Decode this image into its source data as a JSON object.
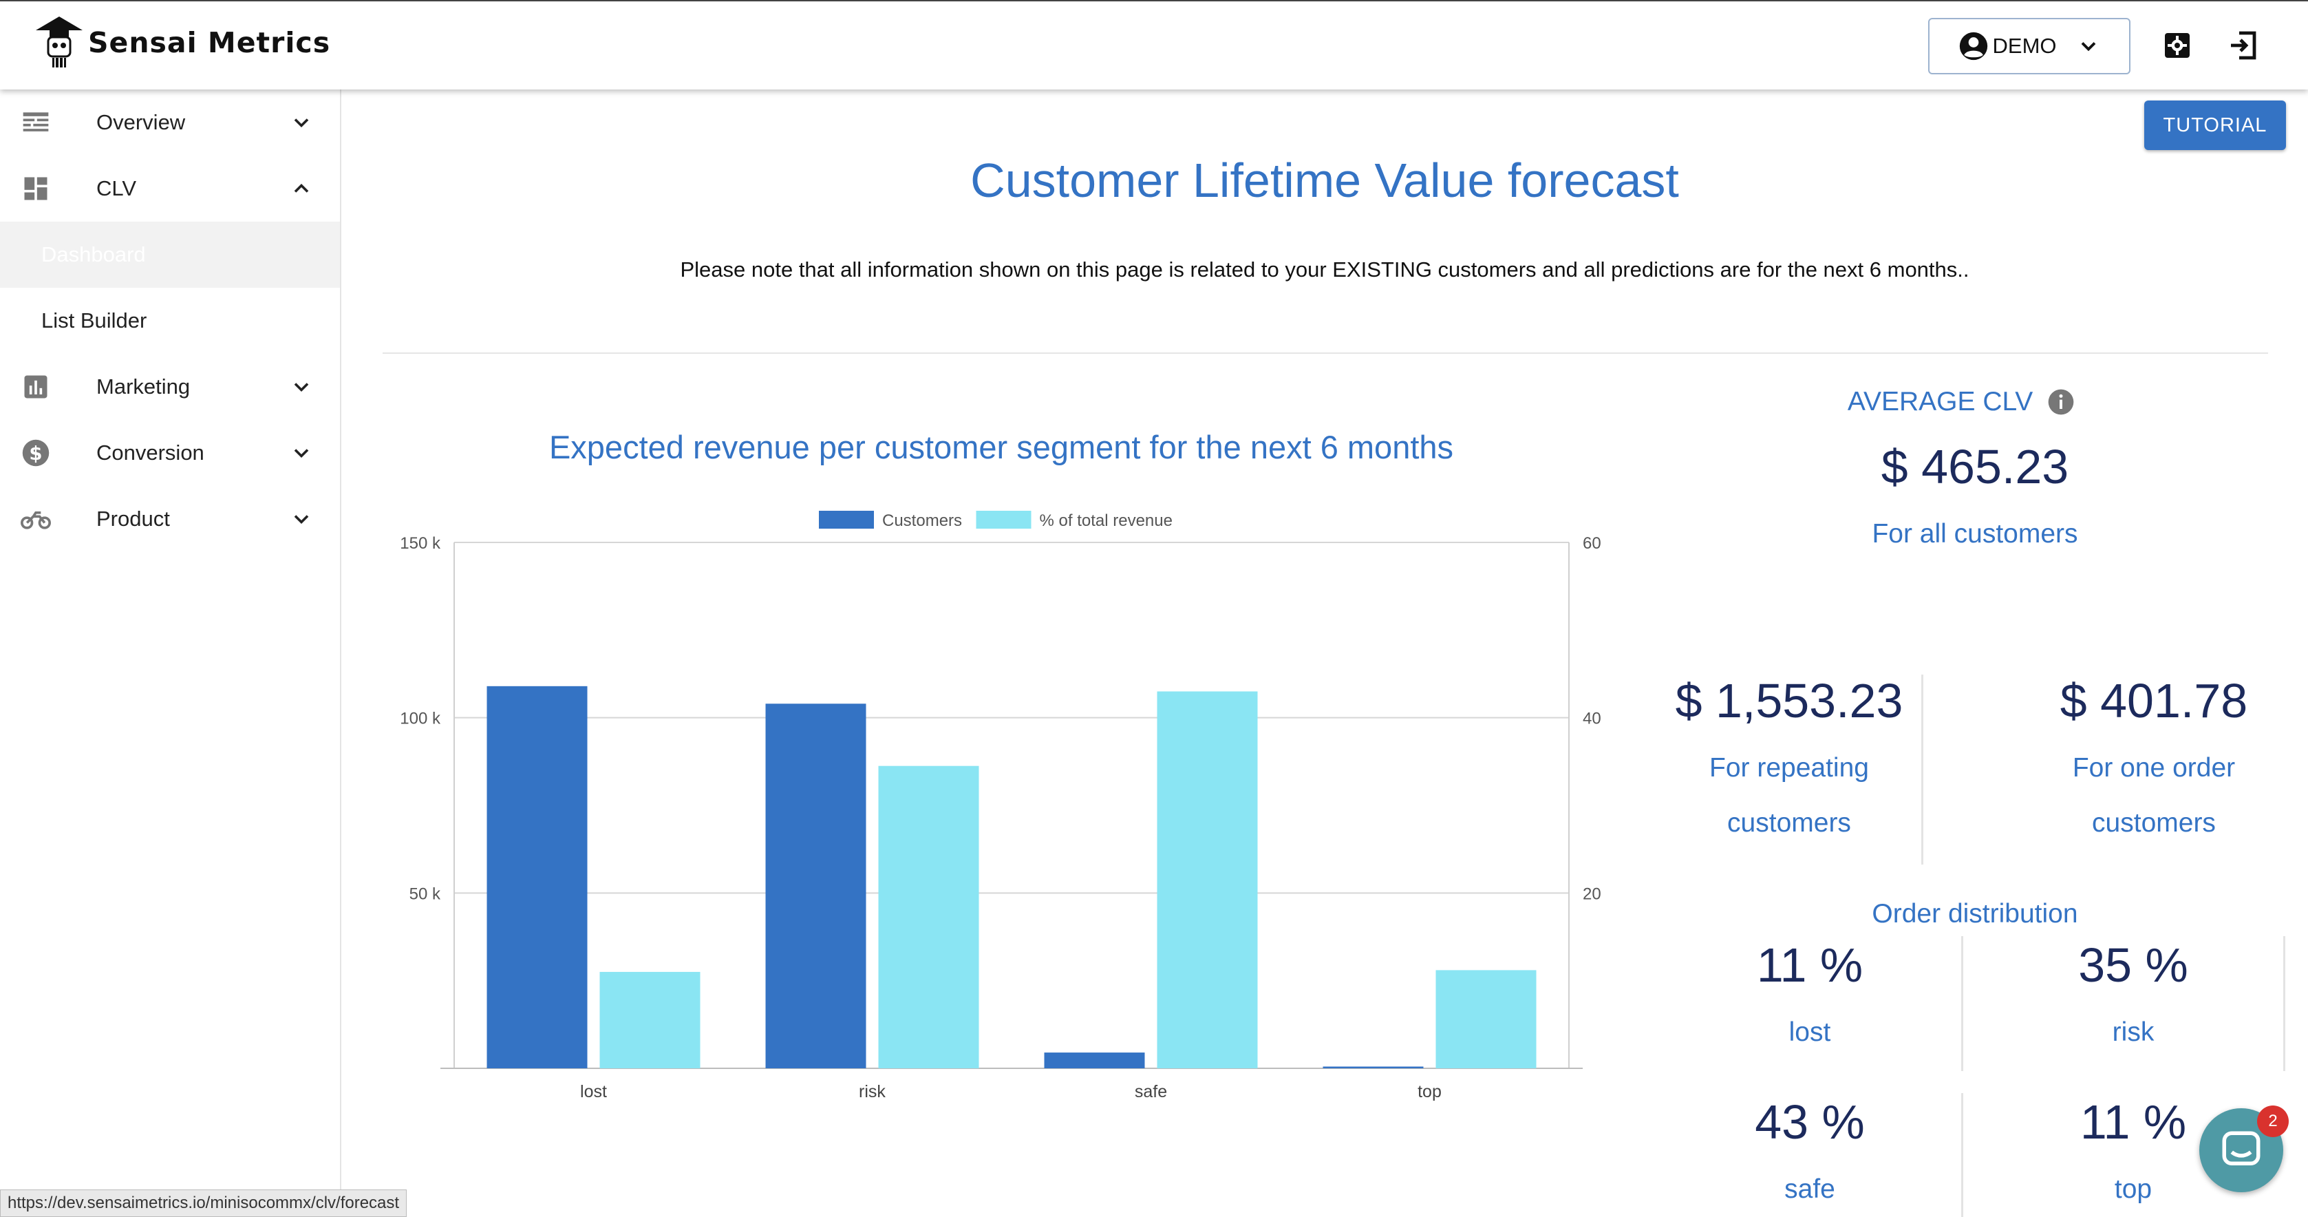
{
  "app": {
    "name": "Sensai Metrics"
  },
  "header": {
    "account_label": "DEMO"
  },
  "sidebar": {
    "items": [
      {
        "label": "Overview"
      },
      {
        "label": "CLV"
      },
      {
        "label": "Dashboard"
      },
      {
        "label": "List Builder"
      },
      {
        "label": "Marketing"
      },
      {
        "label": "Conversion"
      },
      {
        "label": "Product"
      }
    ]
  },
  "main": {
    "tutorial_label": "TUTORIAL",
    "title": "Customer Lifetime Value forecast",
    "note": "Please note that all information shown on this page is related to your EXISTING customers and all predictions are for the next 6 months..",
    "chart_title": "Expected revenue per customer segment for the next 6 months"
  },
  "chart_data": {
    "type": "bar",
    "title": "Expected revenue per customer segment for the next 6 months",
    "categories": [
      "lost",
      "risk",
      "safe",
      "top"
    ],
    "series": [
      {
        "name": "Customers",
        "axis": "left",
        "color": "#3473c4",
        "values": [
          109000,
          104000,
          4500,
          500
        ]
      },
      {
        "name": "% of total revenue",
        "axis": "right",
        "color": "#8ae5f3",
        "values": [
          11,
          34.5,
          43,
          11.2
        ]
      }
    ],
    "y_left": {
      "min": 0,
      "max": 150000,
      "ticks": [
        {
          "v": 50000,
          "label": "50 k"
        },
        {
          "v": 100000,
          "label": "100 k"
        },
        {
          "v": 150000,
          "label": "150 k"
        }
      ]
    },
    "y_right": {
      "min": 0,
      "max": 60,
      "ticks": [
        {
          "v": 20,
          "label": "20"
        },
        {
          "v": 40,
          "label": "40"
        },
        {
          "v": 60,
          "label": "60"
        }
      ]
    },
    "legend_position": "top",
    "grid": true
  },
  "stats": {
    "average_label": "AVERAGE CLV",
    "average_value": "$ 465.23",
    "average_sub": "For all customers",
    "repeating_value": "$ 1,553.23",
    "repeating_line1": "For repeating",
    "repeating_line2": "customers",
    "one_order_value": "$ 401.78",
    "one_order_line1": "For one order",
    "one_order_line2": "customers",
    "distribution_title": "Order distribution",
    "distribution": [
      {
        "value": "11 %",
        "label": "lost"
      },
      {
        "value": "35 %",
        "label": "risk"
      },
      {
        "value": "43 %",
        "label": "safe"
      },
      {
        "value": "11 %",
        "label": "top"
      }
    ]
  },
  "status_url": "https://dev.sensaimetrics.io/minisocommx/clv/forecast",
  "chat": {
    "badge": "2"
  }
}
